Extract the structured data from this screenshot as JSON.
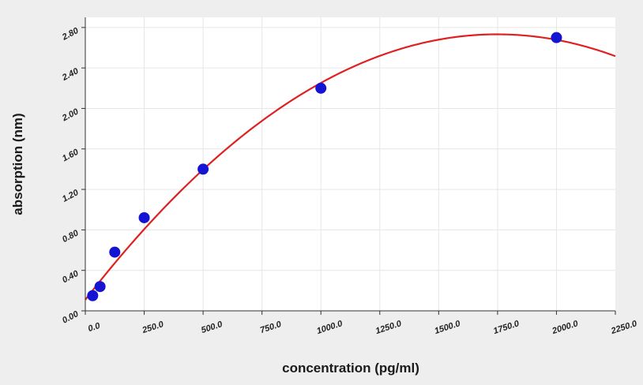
{
  "chart_data": {
    "type": "scatter",
    "title": "",
    "xlabel": "concentration (pg/ml)",
    "ylabel": "absorption (nm)",
    "xlim": [
      0,
      2250
    ],
    "ylim": [
      0,
      2.9
    ],
    "x_ticks": [
      "0.0",
      "250.0",
      "500.0",
      "750.0",
      "1000.0",
      "1250.0",
      "1500.0",
      "1750.0",
      "2000.0",
      "2250.0"
    ],
    "x_tick_values": [
      0,
      250,
      500,
      750,
      1000,
      1250,
      1500,
      1750,
      2000,
      2250
    ],
    "y_ticks": [
      "0.00",
      "0.40",
      "0.80",
      "1.20",
      "1.60",
      "2.00",
      "2.40",
      "2.80"
    ],
    "y_tick_values": [
      0,
      0.4,
      0.8,
      1.2,
      1.6,
      2.0,
      2.4,
      2.8
    ],
    "grid": true,
    "legend": "none",
    "series": [
      {
        "kind": "points",
        "color": "#1414d2",
        "points": [
          {
            "x": 31.25,
            "y": 0.15
          },
          {
            "x": 62.5,
            "y": 0.24
          },
          {
            "x": 125,
            "y": 0.58
          },
          {
            "x": 250,
            "y": 0.92
          },
          {
            "x": 500,
            "y": 1.4
          },
          {
            "x": 1000,
            "y": 2.2
          },
          {
            "x": 2000,
            "y": 2.7
          }
        ]
      },
      {
        "kind": "fit-curve",
        "color": "#e02020",
        "model": "quadratic",
        "coefficients": {
          "a": -8.58e-07,
          "b": 0.003,
          "c": 0.11
        }
      }
    ]
  }
}
